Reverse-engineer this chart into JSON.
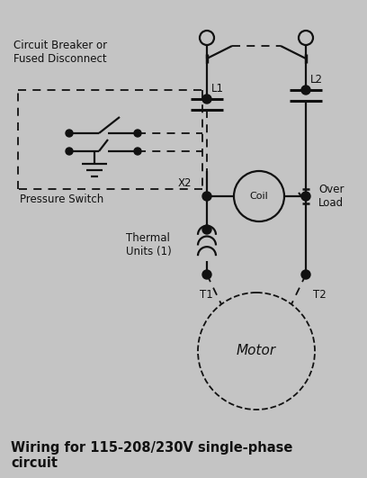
{
  "bg_color": "#c4c4c4",
  "line_color": "#111111",
  "dashed_color": "#111111",
  "text_color": "#111111",
  "cb_label": "Circuit Breaker or\nFused Disconnect",
  "ps_label": "Pressure Switch",
  "thermal_label": "Thermal\nUnits (1)",
  "over_load_label": "Over\nLoad",
  "motor_label": "Motor",
  "title": "Wiring for 115-208/230V single-phase\ncircuit",
  "L1_label": "L1",
  "L2_label": "L2",
  "X2_label": "X2",
  "coil_label": "Coil",
  "T1_label": "T1",
  "T2_label": "T2"
}
